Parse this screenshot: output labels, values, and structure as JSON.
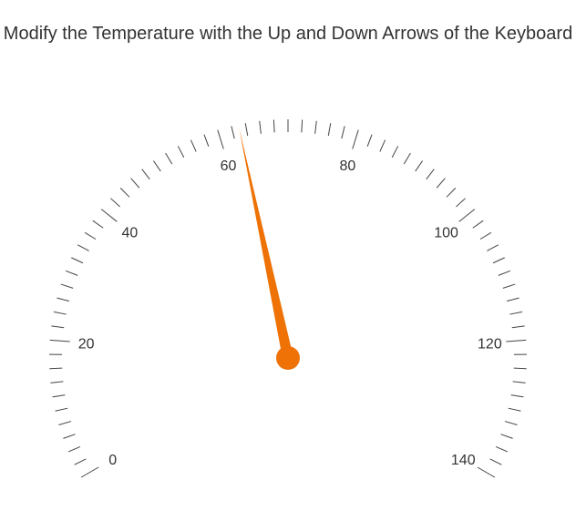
{
  "title": "Modify the Temperature with the Up and Down Arrows of the Keyboard",
  "colors": {
    "needle": "#ee7205",
    "tick": "#444444",
    "text": "#333333",
    "background": "#ffffff"
  },
  "chart_data": {
    "type": "gauge",
    "title": "Modify the Temperature with the Up and Down Arrows of the Keyboard",
    "min": 0,
    "max": 140,
    "value": 63,
    "major_ticks": [
      0,
      20,
      40,
      60,
      80,
      100,
      120,
      140
    ],
    "minor_tick_interval": 2,
    "tick_labels": [
      "0",
      "20",
      "40",
      "60",
      "80",
      "100",
      "120",
      "140"
    ]
  }
}
